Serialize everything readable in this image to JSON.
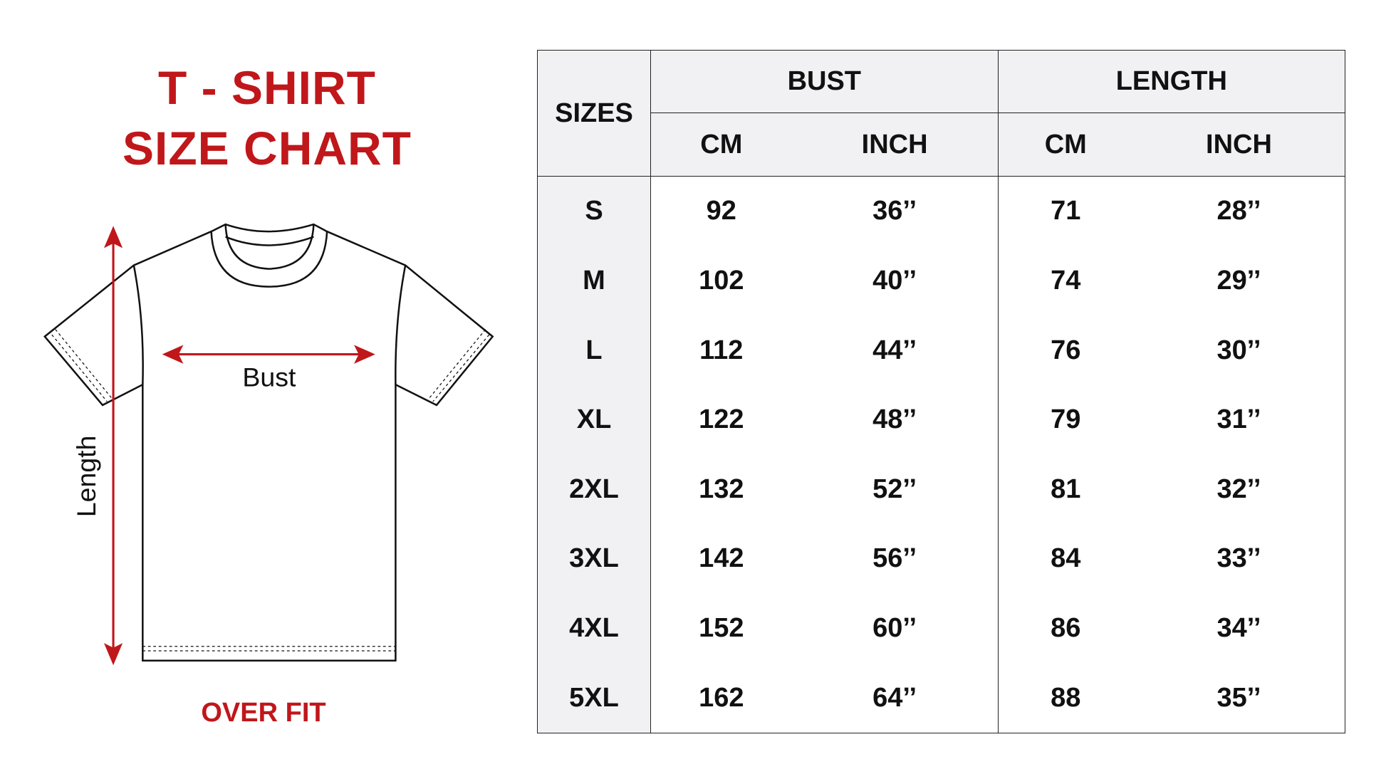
{
  "title": {
    "line1": "T - SHIRT",
    "line2": "SIZE CHART",
    "fit": "OVER FIT"
  },
  "diagram": {
    "bust_label": "Bust",
    "length_label": "Length"
  },
  "colors": {
    "accent": "#c0171b",
    "header_bg": "#f1f0f2"
  },
  "table": {
    "sizes_header": "SIZES",
    "groups": [
      "BUST",
      "LENGTH"
    ],
    "units": [
      "CM",
      "INCH",
      "CM",
      "INCH"
    ],
    "rows": [
      [
        "S",
        "92",
        "36’’",
        "71",
        "28’’"
      ],
      [
        "M",
        "102",
        "40’’",
        "74",
        "29’’"
      ],
      [
        "L",
        "112",
        "44’’",
        "76",
        "30’’"
      ],
      [
        "XL",
        "122",
        "48’’",
        "79",
        "31’’"
      ],
      [
        "2XL",
        "132",
        "52’’",
        "81",
        "32’’"
      ],
      [
        "3XL",
        "142",
        "56’’",
        "84",
        "33’’"
      ],
      [
        "4XL",
        "152",
        "60’’",
        "86",
        "34’’"
      ],
      [
        "5XL",
        "162",
        "64’’",
        "88",
        "35’’"
      ]
    ]
  }
}
